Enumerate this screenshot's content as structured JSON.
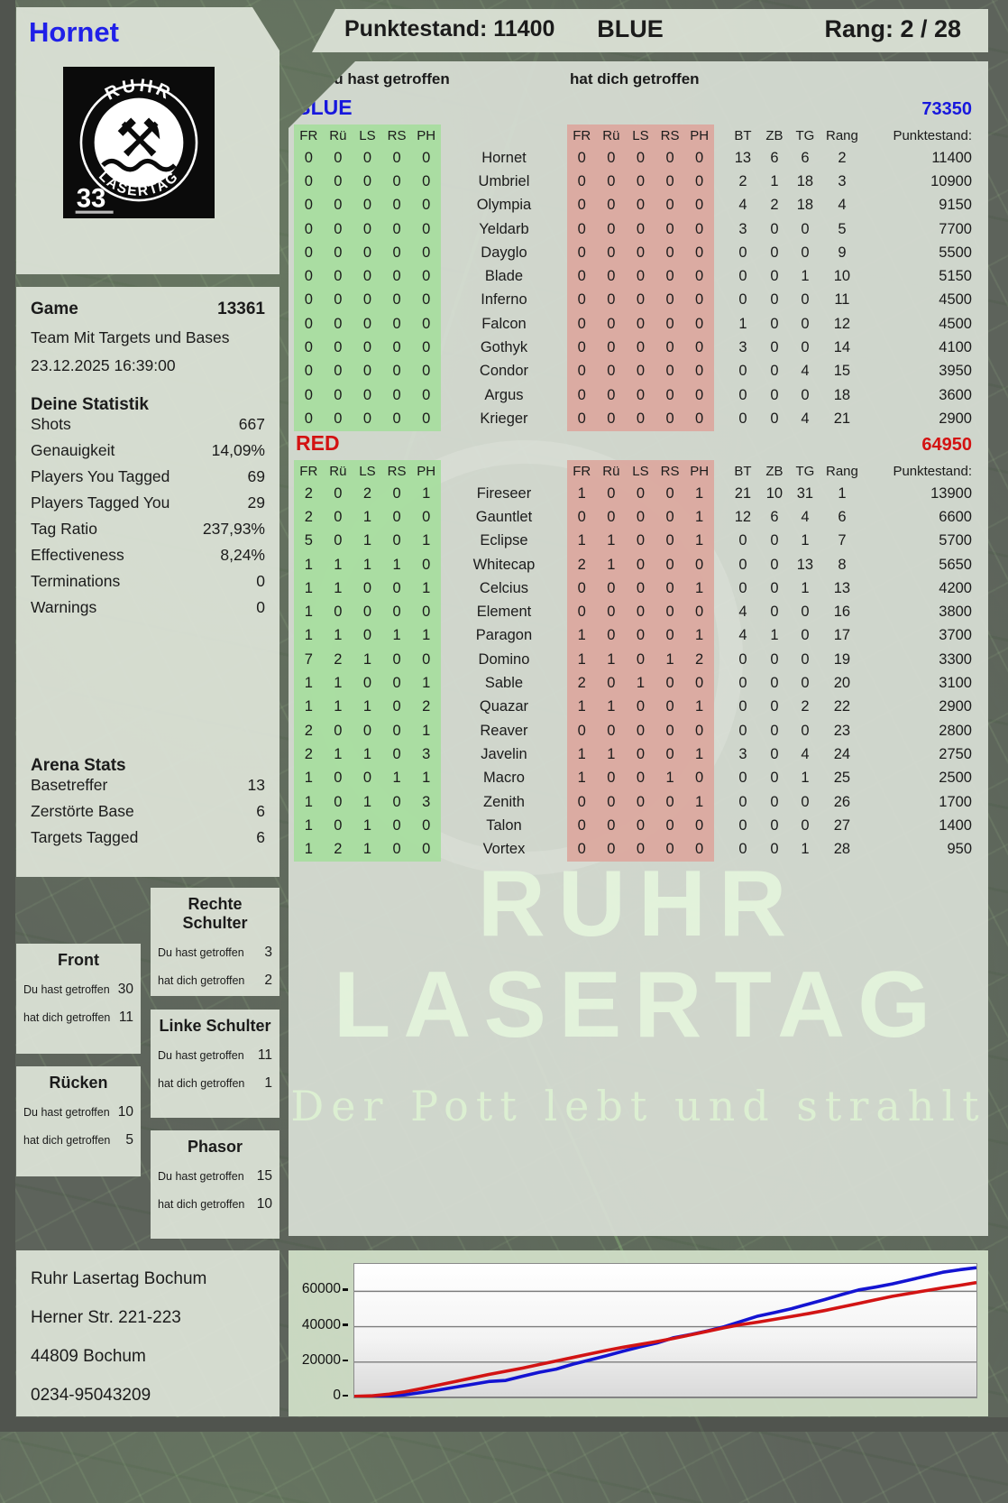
{
  "header": {
    "player_name": "Hornet",
    "score_text": "Punktestand: 11400",
    "team": "BLUE",
    "rank_text": "Rang: 2 / 28"
  },
  "logo": {
    "arc_top": "RUHR",
    "arc_bottom": "LASERTAG",
    "number": "33",
    "hammers_icon": "⚒"
  },
  "game": {
    "label": "Game",
    "number": "13361",
    "mode": "Team Mit Targets und Bases",
    "datetime": "23.12.2025 16:39:00"
  },
  "stats": {
    "title": "Deine Statistik",
    "rows": [
      {
        "label": "Shots",
        "value": "667"
      },
      {
        "label": "Genauigkeit",
        "value": "14,09%"
      },
      {
        "label": "Players You Tagged",
        "value": "69"
      },
      {
        "label": "Players Tagged You",
        "value": "29"
      },
      {
        "label": "Tag Ratio",
        "value": "237,93%"
      },
      {
        "label": "Effectiveness",
        "value": "8,24%"
      },
      {
        "label": "Terminations",
        "value": "0"
      },
      {
        "label": "Warnings",
        "value": "0"
      }
    ]
  },
  "arena": {
    "title": "Arena Stats",
    "rows": [
      {
        "label": "Basetreffer",
        "value": "13"
      },
      {
        "label": "Zerstörte Base",
        "value": "6"
      },
      {
        "label": "Targets Tagged",
        "value": "6"
      }
    ]
  },
  "hit_labels": {
    "you": "Du hast getroffen",
    "them": "hat dich getroffen"
  },
  "hitzones": [
    {
      "title": "Front",
      "you": "30",
      "them": "11"
    },
    {
      "title": "Rücken",
      "you": "10",
      "them": "5"
    },
    {
      "title": "Rechte Schulter",
      "you": "3",
      "them": "2"
    },
    {
      "title": "Linke Schulter",
      "you": "11",
      "them": "1"
    },
    {
      "title": "Phasor",
      "you": "15",
      "them": "10"
    }
  ],
  "table": {
    "you_header": "Du hast getroffen",
    "them_header": "hat dich getroffen",
    "hit_cols": [
      "FR",
      "Rü",
      "LS",
      "RS",
      "PH"
    ],
    "stat_cols": [
      "BT",
      "ZB",
      "TG",
      "Rang",
      "Punktestand:"
    ],
    "teams": [
      {
        "name": "BLUE",
        "total": "73350",
        "color_class": "blue",
        "players": [
          {
            "name": "Hornet",
            "you": [
              0,
              0,
              0,
              0,
              0
            ],
            "them": [
              0,
              0,
              0,
              0,
              0
            ],
            "bt": 13,
            "zb": 6,
            "tg": 6,
            "rang": 2,
            "punkte": 11400
          },
          {
            "name": "Umbriel",
            "you": [
              0,
              0,
              0,
              0,
              0
            ],
            "them": [
              0,
              0,
              0,
              0,
              0
            ],
            "bt": 2,
            "zb": 1,
            "tg": 18,
            "rang": 3,
            "punkte": 10900
          },
          {
            "name": "Olympia",
            "you": [
              0,
              0,
              0,
              0,
              0
            ],
            "them": [
              0,
              0,
              0,
              0,
              0
            ],
            "bt": 4,
            "zb": 2,
            "tg": 18,
            "rang": 4,
            "punkte": 9150
          },
          {
            "name": "Yeldarb",
            "you": [
              0,
              0,
              0,
              0,
              0
            ],
            "them": [
              0,
              0,
              0,
              0,
              0
            ],
            "bt": 3,
            "zb": 0,
            "tg": 0,
            "rang": 5,
            "punkte": 7700
          },
          {
            "name": "Dayglo",
            "you": [
              0,
              0,
              0,
              0,
              0
            ],
            "them": [
              0,
              0,
              0,
              0,
              0
            ],
            "bt": 0,
            "zb": 0,
            "tg": 0,
            "rang": 9,
            "punkte": 5500
          },
          {
            "name": "Blade",
            "you": [
              0,
              0,
              0,
              0,
              0
            ],
            "them": [
              0,
              0,
              0,
              0,
              0
            ],
            "bt": 0,
            "zb": 0,
            "tg": 1,
            "rang": 10,
            "punkte": 5150
          },
          {
            "name": "Inferno",
            "you": [
              0,
              0,
              0,
              0,
              0
            ],
            "them": [
              0,
              0,
              0,
              0,
              0
            ],
            "bt": 0,
            "zb": 0,
            "tg": 0,
            "rang": 11,
            "punkte": 4500
          },
          {
            "name": "Falcon",
            "you": [
              0,
              0,
              0,
              0,
              0
            ],
            "them": [
              0,
              0,
              0,
              0,
              0
            ],
            "bt": 1,
            "zb": 0,
            "tg": 0,
            "rang": 12,
            "punkte": 4500
          },
          {
            "name": "Gothyk",
            "you": [
              0,
              0,
              0,
              0,
              0
            ],
            "them": [
              0,
              0,
              0,
              0,
              0
            ],
            "bt": 3,
            "zb": 0,
            "tg": 0,
            "rang": 14,
            "punkte": 4100
          },
          {
            "name": "Condor",
            "you": [
              0,
              0,
              0,
              0,
              0
            ],
            "them": [
              0,
              0,
              0,
              0,
              0
            ],
            "bt": 0,
            "zb": 0,
            "tg": 4,
            "rang": 15,
            "punkte": 3950
          },
          {
            "name": "Argus",
            "you": [
              0,
              0,
              0,
              0,
              0
            ],
            "them": [
              0,
              0,
              0,
              0,
              0
            ],
            "bt": 0,
            "zb": 0,
            "tg": 0,
            "rang": 18,
            "punkte": 3600
          },
          {
            "name": "Krieger",
            "you": [
              0,
              0,
              0,
              0,
              0
            ],
            "them": [
              0,
              0,
              0,
              0,
              0
            ],
            "bt": 0,
            "zb": 0,
            "tg": 4,
            "rang": 21,
            "punkte": 2900
          }
        ]
      },
      {
        "name": "RED",
        "total": "64950",
        "color_class": "red",
        "players": [
          {
            "name": "Fireseer",
            "you": [
              2,
              0,
              2,
              0,
              1
            ],
            "them": [
              1,
              0,
              0,
              0,
              1
            ],
            "bt": 21,
            "zb": 10,
            "tg": 31,
            "rang": 1,
            "punkte": 13900
          },
          {
            "name": "Gauntlet",
            "you": [
              2,
              0,
              1,
              0,
              0
            ],
            "them": [
              0,
              0,
              0,
              0,
              1
            ],
            "bt": 12,
            "zb": 6,
            "tg": 4,
            "rang": 6,
            "punkte": 6600
          },
          {
            "name": "Eclipse",
            "you": [
              5,
              0,
              1,
              0,
              1
            ],
            "them": [
              1,
              1,
              0,
              0,
              1
            ],
            "bt": 0,
            "zb": 0,
            "tg": 1,
            "rang": 7,
            "punkte": 5700
          },
          {
            "name": "Whitecap",
            "you": [
              1,
              1,
              1,
              1,
              0
            ],
            "them": [
              2,
              1,
              0,
              0,
              0
            ],
            "bt": 0,
            "zb": 0,
            "tg": 13,
            "rang": 8,
            "punkte": 5650
          },
          {
            "name": "Celcius",
            "you": [
              1,
              1,
              0,
              0,
              1
            ],
            "them": [
              0,
              0,
              0,
              0,
              1
            ],
            "bt": 0,
            "zb": 0,
            "tg": 1,
            "rang": 13,
            "punkte": 4200
          },
          {
            "name": "Element",
            "you": [
              1,
              0,
              0,
              0,
              0
            ],
            "them": [
              0,
              0,
              0,
              0,
              0
            ],
            "bt": 4,
            "zb": 0,
            "tg": 0,
            "rang": 16,
            "punkte": 3800
          },
          {
            "name": "Paragon",
            "you": [
              1,
              1,
              0,
              1,
              1
            ],
            "them": [
              1,
              0,
              0,
              0,
              1
            ],
            "bt": 4,
            "zb": 1,
            "tg": 0,
            "rang": 17,
            "punkte": 3700
          },
          {
            "name": "Domino",
            "you": [
              7,
              2,
              1,
              0,
              0
            ],
            "them": [
              1,
              1,
              0,
              1,
              2
            ],
            "bt": 0,
            "zb": 0,
            "tg": 0,
            "rang": 19,
            "punkte": 3300
          },
          {
            "name": "Sable",
            "you": [
              1,
              1,
              0,
              0,
              1
            ],
            "them": [
              2,
              0,
              1,
              0,
              0
            ],
            "bt": 0,
            "zb": 0,
            "tg": 0,
            "rang": 20,
            "punkte": 3100
          },
          {
            "name": "Quazar",
            "you": [
              1,
              1,
              1,
              0,
              2
            ],
            "them": [
              1,
              1,
              0,
              0,
              1
            ],
            "bt": 0,
            "zb": 0,
            "tg": 2,
            "rang": 22,
            "punkte": 2900
          },
          {
            "name": "Reaver",
            "you": [
              2,
              0,
              0,
              0,
              1
            ],
            "them": [
              0,
              0,
              0,
              0,
              0
            ],
            "bt": 0,
            "zb": 0,
            "tg": 0,
            "rang": 23,
            "punkte": 2800
          },
          {
            "name": "Javelin",
            "you": [
              2,
              1,
              1,
              0,
              3
            ],
            "them": [
              1,
              1,
              0,
              0,
              1
            ],
            "bt": 3,
            "zb": 0,
            "tg": 4,
            "rang": 24,
            "punkte": 2750
          },
          {
            "name": "Macro",
            "you": [
              1,
              0,
              0,
              1,
              1
            ],
            "them": [
              1,
              0,
              0,
              1,
              0
            ],
            "bt": 0,
            "zb": 0,
            "tg": 1,
            "rang": 25,
            "punkte": 2500
          },
          {
            "name": "Zenith",
            "you": [
              1,
              0,
              1,
              0,
              3
            ],
            "them": [
              0,
              0,
              0,
              0,
              1
            ],
            "bt": 0,
            "zb": 0,
            "tg": 0,
            "rang": 26,
            "punkte": 1700
          },
          {
            "name": "Talon",
            "you": [
              1,
              0,
              1,
              0,
              0
            ],
            "them": [
              0,
              0,
              0,
              0,
              0
            ],
            "bt": 0,
            "zb": 0,
            "tg": 0,
            "rang": 27,
            "punkte": 1400
          },
          {
            "name": "Vortex",
            "you": [
              1,
              2,
              1,
              0,
              0
            ],
            "them": [
              0,
              0,
              0,
              0,
              0
            ],
            "bt": 0,
            "zb": 0,
            "tg": 1,
            "rang": 28,
            "punkte": 950
          }
        ]
      }
    ]
  },
  "watermark": {
    "line1": "RUHR",
    "line2": "LASERTAG",
    "tagline": "Der Pott lebt und strahlt"
  },
  "address": {
    "lines": [
      "Ruhr Lasertag Bochum",
      "Herner Str. 221-223",
      "44809 Bochum",
      "0234-95043209"
    ]
  },
  "chart_data": {
    "type": "line",
    "title": "",
    "xlabel": "",
    "ylabel": "",
    "ylim": [
      0,
      75500
    ],
    "yticks": [
      0,
      20000,
      40000,
      60000
    ],
    "grid": "horizontal",
    "legend_position": "none",
    "series": [
      {
        "name": "BLUE",
        "color": "#1414d2",
        "values": [
          0,
          300,
          700,
          1500,
          2800,
          4200,
          5800,
          7400,
          9000,
          9600,
          12000,
          14200,
          16000,
          18800,
          21200,
          23600,
          26200,
          28600,
          30800,
          33800,
          35600,
          37600,
          40000,
          43000,
          46000,
          48000,
          50200,
          52800,
          55400,
          58200,
          60800,
          62400,
          64200,
          66400,
          68600,
          70800,
          72200,
          73350
        ]
      },
      {
        "name": "RED",
        "color": "#d21414",
        "values": [
          600,
          900,
          1800,
          3200,
          5000,
          7000,
          9000,
          11000,
          13000,
          14800,
          16600,
          18600,
          20600,
          22600,
          24600,
          26600,
          28400,
          30000,
          31600,
          33400,
          35400,
          37400,
          39400,
          41200,
          42600,
          44200,
          45800,
          47400,
          49200,
          51200,
          53200,
          55200,
          57200,
          58800,
          60400,
          62000,
          63400,
          64950
        ]
      }
    ]
  }
}
